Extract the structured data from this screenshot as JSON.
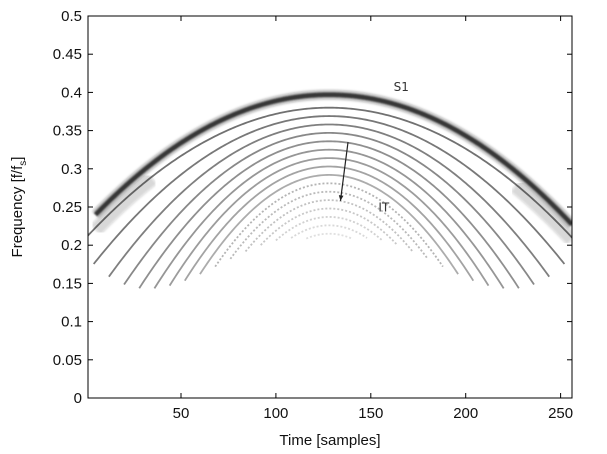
{
  "chart_data": {
    "type": "heatmap",
    "xlabel": "Time [samples]",
    "ylabel_main": "Frequency [f/f",
    "ylabel_sub": "s",
    "ylabel_tail": "]",
    "xlim": [
      1,
      256
    ],
    "ylim": [
      0,
      0.5
    ],
    "xticks": [
      50,
      100,
      150,
      200,
      250
    ],
    "yticks": [
      0,
      0.05,
      0.1,
      0.15,
      0.2,
      0.25,
      0.3,
      0.35,
      0.4,
      0.45,
      0.5
    ],
    "grid": false,
    "colormap": "gray-inverted",
    "colors": {
      "frame": "#000000",
      "background": "#ffffff",
      "intensity": "#1a1a1a"
    },
    "series": [
      {
        "component": "signal",
        "x": [
          5,
          128,
          256
        ],
        "y": [
          0.24,
          0.397,
          0.24
        ]
      }
    ],
    "interference": {
      "peak": [
        128,
        0.38
      ],
      "lowest": [
        128,
        0.215
      ],
      "spacing": 0.011
    },
    "annotations": [
      {
        "text": "S1",
        "x": 162,
        "y": 0.402
      },
      {
        "text": "IT",
        "x": 154,
        "y": 0.244,
        "arrow_from": [
          138,
          0.335
        ],
        "arrow_to": [
          134,
          0.258
        ]
      }
    ]
  }
}
